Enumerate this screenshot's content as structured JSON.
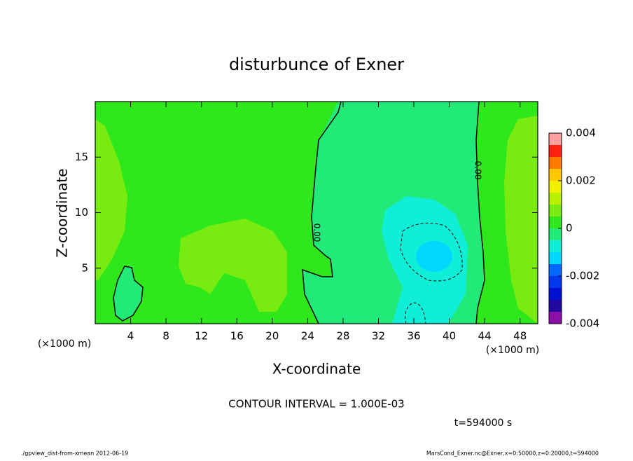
{
  "chart_data": {
    "type": "contour",
    "title": "disturbunce of Exner",
    "x_label": "X-coordinate",
    "y_label": "Z-coordinate",
    "x_unit": "(×1000 m)",
    "y_unit": "(×1000 m)",
    "xlim": [
      0,
      50
    ],
    "xticks": [
      4,
      8,
      12,
      16,
      20,
      24,
      28,
      32,
      36,
      40,
      44,
      48
    ],
    "ylim": [
      0,
      20
    ],
    "yticks": [
      5,
      10,
      15
    ],
    "levels": [
      -0.004,
      -0.0035,
      -0.003,
      -0.0025,
      -0.002,
      -0.0015,
      -0.001,
      -0.0005,
      0,
      0.0005,
      0.001,
      0.0015,
      0.002,
      0.0025,
      0.003,
      0.0035,
      0.004
    ],
    "colors": [
      "#8c10a8",
      "#2008a0",
      "#0010d0",
      "#0038f0",
      "#0068ff",
      "#00d8ff",
      "#10eed8",
      "#22ea78",
      "#2ee81c",
      "#78ec10",
      "#b8f000",
      "#f0f000",
      "#ffc800",
      "#ff7800",
      "#ff2010",
      "#ffa0a0"
    ],
    "colorbar_ticks": [
      -0.004,
      -0.002,
      0,
      0.002,
      0.004
    ],
    "contour_labels": [
      "0.00",
      "0.00"
    ],
    "contour_interval": "CONTOUR INTERVAL = 1.000E-03",
    "time": "t=594000 s",
    "footer_left": "./gpview_dist-from-xmean  2012-06-19",
    "footer_right": "MarsCond_Exner.nc@Exner,x=0:50000,z=0:20000,t=594000"
  }
}
